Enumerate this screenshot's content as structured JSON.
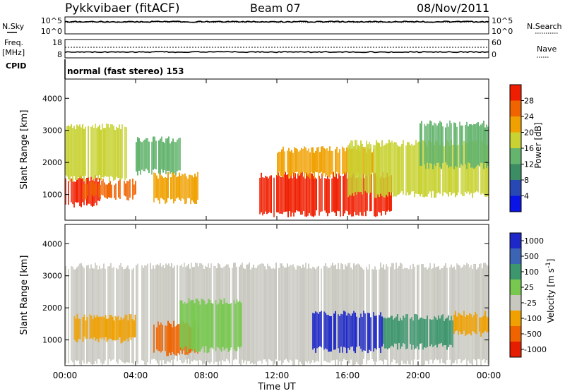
{
  "header": {
    "station": "Pykkvibaer (fitACF)",
    "beam": "Beam 07",
    "date": "08/Nov/2011"
  },
  "status_panels": {
    "nsky_label": "N.Sky",
    "nsky_ticks": [
      "10^5",
      "10^0"
    ],
    "nsearch_label": "N.Search",
    "nsearch_ticks": [
      "10^5",
      "10^0"
    ],
    "freq_label_1": "Freq.",
    "freq_label_2": "[MHz]",
    "freq_ticks": [
      "18",
      "8"
    ],
    "nave_label": "Nave",
    "nave_ticks": [
      "60",
      "0"
    ],
    "cpid_label": "CPID",
    "cpid_text": "normal (fast stereo) 153"
  },
  "chart_data": [
    {
      "type": "heatmap",
      "name": "power",
      "ylabel": "Slant Range [km]",
      "ylim": [
        200,
        4600
      ],
      "yticks": [
        "1000",
        "2000",
        "3000",
        "4000"
      ],
      "colorbar_label": "Power [dB]",
      "colorbar_ticks": [
        "4",
        "8",
        "12",
        "16",
        "20",
        "24",
        "28"
      ],
      "colors": [
        "#0a14e6",
        "#2848b4",
        "#3c8c64",
        "#64b46e",
        "#c8d232",
        "#f0a000",
        "#f06400",
        "#f01e00"
      ],
      "bands": [
        {
          "t0": 0.0,
          "t1": 2.0,
          "r0": 700,
          "r1": 1500,
          "level": 7
        },
        {
          "t0": 1.0,
          "t1": 4.0,
          "r0": 900,
          "r1": 1400,
          "level": 6
        },
        {
          "t0": 0.0,
          "t1": 3.5,
          "r0": 1500,
          "r1": 3100,
          "level": 4
        },
        {
          "t0": 4.0,
          "t1": 6.5,
          "r0": 1700,
          "r1": 2700,
          "level": 3
        },
        {
          "t0": 5.0,
          "t1": 7.5,
          "r0": 800,
          "r1": 1600,
          "level": 5
        },
        {
          "t0": 11.0,
          "t1": 18.5,
          "r0": 400,
          "r1": 1600,
          "level": 7
        },
        {
          "t0": 12.0,
          "t1": 17.5,
          "r0": 1600,
          "r1": 2400,
          "level": 5
        },
        {
          "t0": 16.0,
          "t1": 24.0,
          "r0": 1000,
          "r1": 2600,
          "level": 4
        },
        {
          "t0": 20.0,
          "t1": 24.0,
          "r0": 1900,
          "r1": 3200,
          "level": 3
        }
      ]
    },
    {
      "type": "heatmap",
      "name": "velocity",
      "ylabel": "Slant Range [km]",
      "ylim": [
        200,
        4600
      ],
      "yticks": [
        "1000",
        "2000",
        "3000",
        "4000"
      ],
      "xlabel": "Time UT",
      "xticks": [
        "00:00",
        "04:00",
        "08:00",
        "12:00",
        "16:00",
        "20:00",
        "00:00"
      ],
      "colorbar_label": "Velocity [m s",
      "colorbar_label_sup": "-1",
      "colorbar_ticks": [
        "1000",
        "500",
        "100",
        "25",
        "-25",
        "-100",
        "-500",
        "-1000"
      ],
      "colors": [
        "#1e28c8",
        "#3c64b4",
        "#3c966e",
        "#78c850",
        "#c8c8c0",
        "#f0a000",
        "#f06400",
        "#e61e00"
      ],
      "bands": [
        {
          "t0": 0.0,
          "t1": 24.0,
          "r0": 300,
          "r1": 3300,
          "level": 4
        },
        {
          "t0": 0.5,
          "t1": 4.0,
          "r0": 1000,
          "r1": 1700,
          "level": 5
        },
        {
          "t0": 5.0,
          "t1": 7.5,
          "r0": 600,
          "r1": 1500,
          "level": 6
        },
        {
          "t0": 6.5,
          "t1": 10.0,
          "r0": 700,
          "r1": 2200,
          "level": 3
        },
        {
          "t0": 14.0,
          "t1": 18.0,
          "r0": 700,
          "r1": 1800,
          "level": 0
        },
        {
          "t0": 18.0,
          "t1": 22.0,
          "r0": 800,
          "r1": 1700,
          "level": 2
        },
        {
          "t0": 22.0,
          "t1": 24.0,
          "r0": 1200,
          "r1": 1800,
          "level": 5
        }
      ]
    }
  ]
}
